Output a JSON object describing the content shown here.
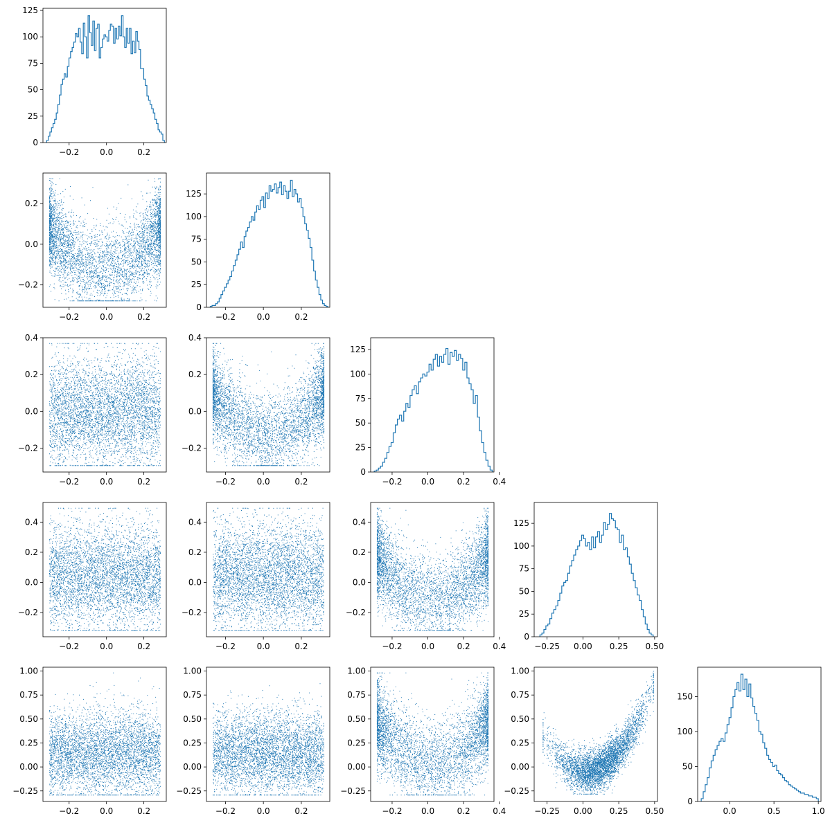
{
  "chart_data": {
    "type": "corner",
    "n_dims": 5,
    "color": "#1f77b4",
    "diagonal": [
      {
        "type": "histogram",
        "dim": 0,
        "xlim": [
          -0.34,
          0.32
        ],
        "ylim": [
          0,
          127
        ],
        "xticks": [
          -0.2,
          0.0,
          0.2
        ],
        "xtick_labels": [
          "−0.2",
          "0.0",
          "0.2"
        ],
        "yticks": [
          0,
          25,
          50,
          75,
          100,
          125
        ],
        "ytick_labels": [
          "0",
          "25",
          "50",
          "75",
          "100",
          "125"
        ],
        "bin_edges_range": [
          -0.32,
          0.31
        ],
        "counts": [
          2,
          6,
          10,
          14,
          18,
          22,
          28,
          36,
          45,
          55,
          60,
          65,
          62,
          72,
          80,
          86,
          90,
          95,
          103,
          100,
          108,
          95,
          84,
          113,
          100,
          80,
          120,
          104,
          92,
          115,
          87,
          108,
          112,
          80,
          90,
          98,
          102,
          100,
          96,
          106,
          112,
          110,
          94,
          108,
          98,
          110,
          101,
          120,
          100,
          90,
          108,
          94,
          108,
          84,
          96,
          85,
          105,
          96,
          88,
          70,
          70,
          60,
          54,
          44,
          40,
          36,
          32,
          28,
          22,
          18,
          12,
          10,
          8,
          2
        ]
      },
      {
        "type": "histogram",
        "dim": 1,
        "xlim": [
          -0.3,
          0.35
        ],
        "ylim": [
          0,
          148
        ],
        "xticks": [
          -0.2,
          0.0,
          0.2
        ],
        "xtick_labels": [
          "−0.2",
          "0.0",
          "0.2"
        ],
        "yticks": [
          0,
          25,
          50,
          75,
          100,
          125
        ],
        "ytick_labels": [
          "0",
          "25",
          "50",
          "75",
          "100",
          "125"
        ],
        "bin_edges_range": [
          -0.28,
          0.34
        ],
        "counts": [
          1,
          2,
          2,
          4,
          6,
          10,
          14,
          18,
          22,
          26,
          30,
          34,
          40,
          46,
          52,
          58,
          64,
          72,
          66,
          78,
          84,
          88,
          94,
          100,
          96,
          105,
          112,
          108,
          118,
          122,
          110,
          126,
          120,
          134,
          128,
          130,
          136,
          126,
          132,
          138,
          124,
          134,
          128,
          120,
          128,
          140,
          122,
          130,
          125,
          116,
          120,
          110,
          100,
          92,
          85,
          76,
          66,
          52,
          40,
          30,
          22,
          14,
          8,
          4,
          2,
          1
        ]
      },
      {
        "type": "histogram",
        "dim": 2,
        "xlim": [
          -0.32,
          0.37
        ],
        "ylim": [
          0,
          137
        ],
        "xticks": [
          -0.2,
          0.0,
          0.2,
          0.4
        ],
        "xtick_labels": [
          "−0.2",
          "0.0",
          "0.2",
          "0.4"
        ],
        "yticks": [
          0,
          25,
          50,
          75,
          100,
          125
        ],
        "ytick_labels": [
          "0",
          "25",
          "50",
          "75",
          "100",
          "125"
        ],
        "bin_edges_range": [
          -0.3,
          0.36
        ],
        "counts": [
          1,
          2,
          4,
          6,
          10,
          14,
          20,
          26,
          30,
          40,
          48,
          54,
          58,
          52,
          62,
          70,
          66,
          78,
          84,
          88,
          80,
          92,
          96,
          100,
          98,
          102,
          110,
          104,
          115,
          120,
          108,
          118,
          112,
          120,
          126,
          110,
          122,
          118,
          124,
          114,
          120,
          116,
          104,
          112,
          96,
          90,
          84,
          70,
          78,
          56,
          42,
          30,
          20,
          12,
          6,
          2
        ]
      },
      {
        "type": "histogram",
        "dim": 3,
        "xlim": [
          -0.34,
          0.52
        ],
        "ylim": [
          0,
          148
        ],
        "xticks": [
          -0.25,
          0.0,
          0.25,
          0.5
        ],
        "xtick_labels": [
          "−0.25",
          "0.00",
          "0.25",
          "0.50"
        ],
        "yticks": [
          0,
          25,
          50,
          75,
          100,
          125
        ],
        "ytick_labels": [
          "0",
          "25",
          "50",
          "75",
          "100",
          "125"
        ],
        "bin_edges_range": [
          -0.3,
          0.49
        ],
        "counts": [
          2,
          4,
          8,
          12,
          14,
          20,
          26,
          30,
          34,
          40,
          48,
          56,
          60,
          62,
          70,
          78,
          84,
          90,
          96,
          100,
          106,
          112,
          108,
          100,
          104,
          96,
          110,
          98,
          110,
          116,
          104,
          112,
          126,
          118,
          124,
          136,
          130,
          128,
          120,
          118,
          104,
          112,
          96,
          98,
          88,
          80,
          70,
          62,
          54,
          46,
          40,
          30,
          22,
          14,
          8,
          4,
          2
        ]
      },
      {
        "type": "histogram",
        "dim": 4,
        "xlim": [
          -0.36,
          1.03
        ],
        "ylim": [
          0,
          192
        ],
        "xticks": [
          0.0,
          0.5,
          1.0
        ],
        "xtick_labels": [
          "0.0",
          "0.5",
          "1.0"
        ],
        "yticks": [
          0,
          50,
          100,
          150
        ],
        "ytick_labels": [
          "0",
          "50",
          "100",
          "150"
        ],
        "bin_edges_range": [
          -0.32,
          1.0
        ],
        "counts": [
          4,
          14,
          24,
          34,
          48,
          58,
          66,
          74,
          80,
          86,
          90,
          86,
          98,
          110,
          120,
          134,
          150,
          160,
          170,
          158,
          182,
          160,
          175,
          150,
          168,
          148,
          136,
          126,
          116,
          100,
          96,
          84,
          76,
          66,
          60,
          56,
          50,
          52,
          44,
          40,
          38,
          34,
          30,
          28,
          24,
          22,
          20,
          18,
          16,
          14,
          12,
          12,
          10,
          10,
          8,
          8,
          6,
          6,
          4
        ]
      }
    ],
    "scatter": [
      {
        "row": 1,
        "col": 0,
        "x_dim": 0,
        "y_dim": 1,
        "xlim": [
          -0.34,
          0.32
        ],
        "ylim": [
          -0.31,
          0.35
        ],
        "xticks": [
          -0.2,
          0.0,
          0.2
        ],
        "xtick_labels": [
          "−0.2",
          "0.0",
          "0.2"
        ],
        "yticks": [
          -0.2,
          0.0,
          0.2
        ],
        "ytick_labels": [
          "−0.2",
          "0.0",
          "0.2"
        ],
        "pattern": "u-shape",
        "n_points": 4500
      },
      {
        "row": 2,
        "col": 0,
        "x_dim": 0,
        "y_dim": 2,
        "xlim": [
          -0.34,
          0.32
        ],
        "ylim": [
          -0.33,
          0.4
        ],
        "xticks": [
          -0.2,
          0.0,
          0.2
        ],
        "xtick_labels": [
          "−0.2",
          "0.0",
          "0.2"
        ],
        "yticks": [
          -0.2,
          0.0,
          0.2,
          0.4
        ],
        "ytick_labels": [
          "−0.2",
          "0.0",
          "0.2",
          "0.4"
        ],
        "pattern": "uniform-cloud",
        "n_points": 4500
      },
      {
        "row": 2,
        "col": 1,
        "x_dim": 1,
        "y_dim": 2,
        "xlim": [
          -0.3,
          0.35
        ],
        "ylim": [
          -0.33,
          0.4
        ],
        "xticks": [
          -0.2,
          0.0,
          0.2
        ],
        "xtick_labels": [
          "−0.2",
          "0.0",
          "0.2"
        ],
        "yticks": [
          -0.2,
          0.0,
          0.2,
          0.4
        ],
        "ytick_labels": [
          "−0.2",
          "0.0",
          "0.2",
          "0.4"
        ],
        "pattern": "u-shape",
        "n_points": 4500
      },
      {
        "row": 3,
        "col": 0,
        "x_dim": 0,
        "y_dim": 3,
        "xlim": [
          -0.34,
          0.32
        ],
        "ylim": [
          -0.36,
          0.53
        ],
        "xticks": [
          -0.2,
          0.0,
          0.2
        ],
        "xtick_labels": [
          "−0.2",
          "0.0",
          "0.2"
        ],
        "yticks": [
          -0.2,
          0.0,
          0.2,
          0.4
        ],
        "ytick_labels": [
          "−0.2",
          "0.0",
          "0.2",
          "0.4"
        ],
        "pattern": "uniform-cloud",
        "n_points": 4500
      },
      {
        "row": 3,
        "col": 1,
        "x_dim": 1,
        "y_dim": 3,
        "xlim": [
          -0.3,
          0.35
        ],
        "ylim": [
          -0.36,
          0.53
        ],
        "xticks": [
          -0.2,
          0.0,
          0.2
        ],
        "xtick_labels": [
          "−0.2",
          "0.0",
          "0.2"
        ],
        "yticks": [
          -0.2,
          0.0,
          0.2,
          0.4
        ],
        "ytick_labels": [
          "−0.2",
          "0.0",
          "0.2",
          "0.4"
        ],
        "pattern": "uniform-cloud",
        "n_points": 4500
      },
      {
        "row": 3,
        "col": 2,
        "x_dim": 2,
        "y_dim": 3,
        "xlim": [
          -0.32,
          0.37
        ],
        "ylim": [
          -0.36,
          0.53
        ],
        "xticks": [
          -0.2,
          0.0,
          0.2,
          0.4
        ],
        "xtick_labels": [
          "−0.2",
          "0.0",
          "0.2",
          "0.4"
        ],
        "yticks": [
          -0.2,
          0.0,
          0.2,
          0.4
        ],
        "ytick_labels": [
          "−0.2",
          "0.0",
          "0.2",
          "0.4"
        ],
        "pattern": "u-shape",
        "n_points": 4500
      },
      {
        "row": 4,
        "col": 0,
        "x_dim": 0,
        "y_dim": 4,
        "xlim": [
          -0.34,
          0.32
        ],
        "ylim": [
          -0.36,
          1.04
        ],
        "xticks": [
          -0.2,
          0.0,
          0.2
        ],
        "xtick_labels": [
          "−0.2",
          "0.0",
          "0.2"
        ],
        "yticks": [
          -0.25,
          0.0,
          0.25,
          0.5,
          0.75,
          1.0
        ],
        "ytick_labels": [
          "−0.25",
          "0.00",
          "0.25",
          "0.50",
          "0.75",
          "1.00"
        ],
        "pattern": "uniform-cloud",
        "n_points": 4500
      },
      {
        "row": 4,
        "col": 1,
        "x_dim": 1,
        "y_dim": 4,
        "xlim": [
          -0.3,
          0.35
        ],
        "ylim": [
          -0.36,
          1.04
        ],
        "xticks": [
          -0.2,
          0.0,
          0.2
        ],
        "xtick_labels": [
          "−0.2",
          "0.0",
          "0.2"
        ],
        "yticks": [
          -0.25,
          0.0,
          0.25,
          0.5,
          0.75,
          1.0
        ],
        "ytick_labels": [
          "−0.25",
          "0.00",
          "0.25",
          "0.50",
          "0.75",
          "1.00"
        ],
        "pattern": "uniform-cloud",
        "n_points": 4500
      },
      {
        "row": 4,
        "col": 2,
        "x_dim": 2,
        "y_dim": 4,
        "xlim": [
          -0.32,
          0.37
        ],
        "ylim": [
          -0.36,
          1.04
        ],
        "xticks": [
          -0.2,
          0.0,
          0.2,
          0.4
        ],
        "xtick_labels": [
          "−0.2",
          "0.0",
          "0.2",
          "0.4"
        ],
        "yticks": [
          -0.25,
          0.0,
          0.25,
          0.5,
          0.75,
          1.0
        ],
        "ytick_labels": [
          "−0.25",
          "0.00",
          "0.25",
          "0.50",
          "0.75",
          "1.00"
        ],
        "pattern": "u-shape",
        "n_points": 4500
      },
      {
        "row": 4,
        "col": 3,
        "x_dim": 3,
        "y_dim": 4,
        "xlim": [
          -0.34,
          0.52
        ],
        "ylim": [
          -0.36,
          1.04
        ],
        "xticks": [
          -0.25,
          0.0,
          0.25,
          0.5
        ],
        "xtick_labels": [
          "−0.25",
          "0.00",
          "0.25",
          "0.50"
        ],
        "yticks": [
          -0.25,
          0.0,
          0.25,
          0.5,
          0.75,
          1.0
        ],
        "ytick_labels": [
          "−0.25",
          "0.00",
          "0.25",
          "0.50",
          "0.75",
          "1.00"
        ],
        "pattern": "parabola",
        "n_points": 4500
      }
    ]
  }
}
